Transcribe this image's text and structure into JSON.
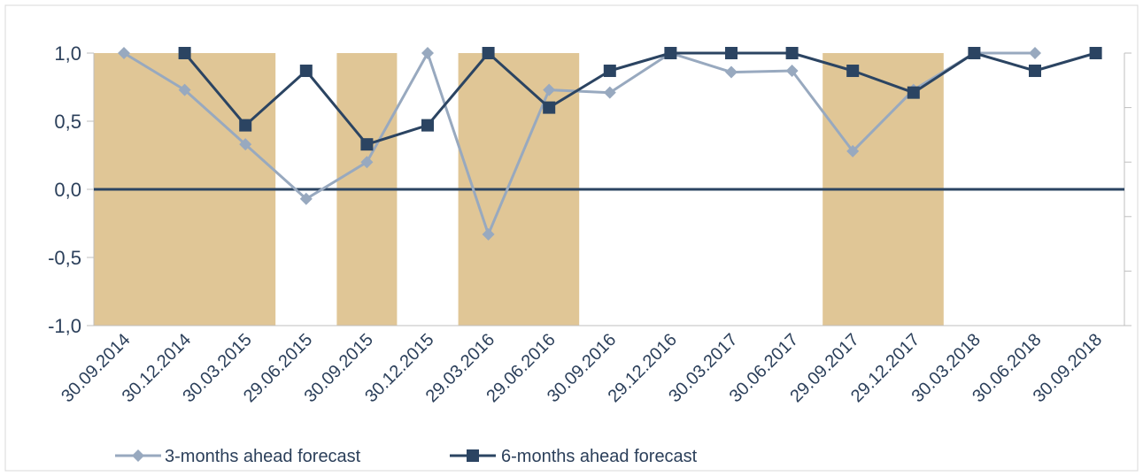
{
  "chart_data": {
    "type": "line",
    "title": "",
    "xlabel": "",
    "ylabel": "",
    "ylim": [
      -1.0,
      1.0
    ],
    "y_ticks": [
      "1,0",
      "0,5",
      "0,0",
      "-0,5",
      "-1,0"
    ],
    "y_tick_values": [
      1.0,
      0.5,
      0.0,
      -0.5,
      -1.0
    ],
    "categories": [
      "30.09.2014",
      "30.12.2014",
      "30.03.2015",
      "29.06.2015",
      "30.09.2015",
      "30.12.2015",
      "29.03.2016",
      "29.06.2016",
      "30.09.2016",
      "29.12.2016",
      "30.03.2017",
      "30.06.2017",
      "29.09.2017",
      "29.12.2017",
      "30.03.2018",
      "30.06.2018",
      "30.09.2018"
    ],
    "shaded_ranges": [
      [
        0,
        2
      ],
      [
        4,
        4
      ],
      [
        6,
        7
      ],
      [
        12,
        13
      ]
    ],
    "shade_color": "#e0c696",
    "grid": false,
    "legend_position": "bottom",
    "series": [
      {
        "name": "3-months ahead forecast",
        "color": "#98a9bf",
        "marker": "diamond",
        "values": [
          1.0,
          0.73,
          0.33,
          -0.07,
          0.2,
          1.0,
          -0.33,
          0.73,
          0.71,
          1.0,
          0.86,
          0.87,
          0.28,
          0.73,
          1.0,
          1.0,
          null
        ]
      },
      {
        "name": "6-months ahead forecast",
        "color": "#2b4462",
        "marker": "square",
        "values": [
          null,
          1.0,
          0.47,
          0.87,
          0.33,
          0.47,
          1.0,
          0.6,
          0.87,
          1.0,
          1.0,
          1.0,
          0.87,
          0.71,
          1.0,
          0.87,
          1.0
        ]
      }
    ]
  }
}
